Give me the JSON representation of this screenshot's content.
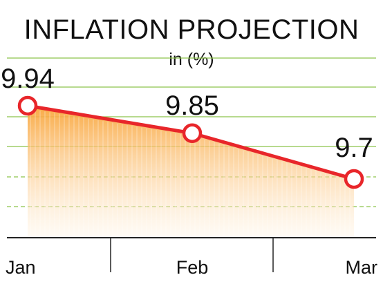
{
  "chart_data": {
    "type": "area",
    "title": "INFLATION PROJECTION",
    "subtitle": "in (%)",
    "categories": [
      "Jan",
      "Feb",
      "Mar"
    ],
    "values": [
      9.94,
      9.85,
      9.7
    ],
    "data_labels": [
      "9.94",
      "9.85",
      "9.7"
    ],
    "xlabel": "",
    "ylabel": "",
    "grid": true,
    "legend": "none",
    "colors": {
      "line": "#e8262a",
      "marker_fill": "#ffffff",
      "area_top": "#f9a53a",
      "area_bottom": "#fff3e2",
      "grid": "#8cc44a",
      "axis": "#222222"
    }
  }
}
